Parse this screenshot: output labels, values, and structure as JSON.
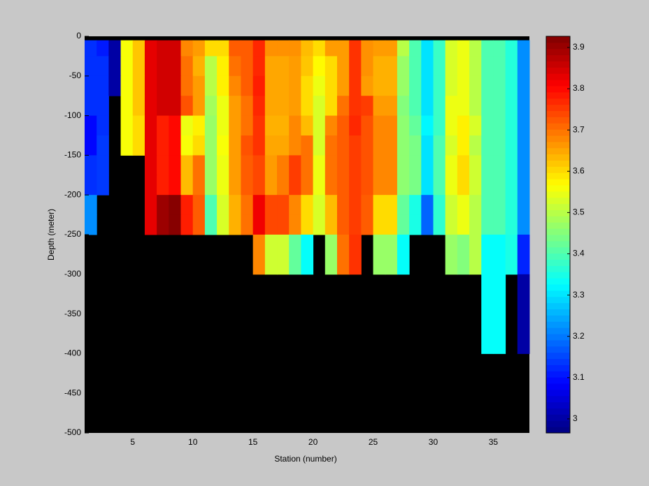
{
  "chart_data": {
    "type": "heatmap",
    "xlabel": "Station (number)",
    "ylabel": "Depth (meter)",
    "colormap": "jet",
    "background": "#000000",
    "x": [
      1,
      2,
      3,
      4,
      5,
      6,
      7,
      8,
      9,
      10,
      11,
      12,
      13,
      14,
      15,
      16,
      17,
      18,
      19,
      20,
      21,
      22,
      23,
      24,
      25,
      26,
      27,
      28,
      29,
      30,
      31,
      32,
      33,
      34,
      35,
      36,
      37,
      38
    ],
    "y": [
      -5,
      -25,
      -50,
      -75,
      -100,
      -125,
      -150,
      -175,
      -200,
      -225,
      -250,
      -300,
      -400
    ],
    "z": [
      [
        3.13,
        3.11,
        3.0,
        3.56,
        3.62,
        3.83,
        3.85,
        3.85,
        3.68,
        3.66,
        3.6,
        3.6,
        3.72,
        3.72,
        3.77,
        3.67,
        3.67,
        3.67,
        3.63,
        3.6,
        3.66,
        3.66,
        3.76,
        3.67,
        3.66,
        3.66,
        3.5,
        3.4,
        3.3,
        3.38,
        3.53,
        3.55,
        3.5,
        3.4,
        3.4,
        3.36,
        3.22
      ],
      [
        3.13,
        3.13,
        3.0,
        3.56,
        3.62,
        3.83,
        3.85,
        3.85,
        3.7,
        3.64,
        3.5,
        3.58,
        3.7,
        3.72,
        3.77,
        3.65,
        3.65,
        3.66,
        3.62,
        3.57,
        3.6,
        3.66,
        3.76,
        3.67,
        3.64,
        3.64,
        3.47,
        3.4,
        3.3,
        3.38,
        3.53,
        3.55,
        3.5,
        3.4,
        3.4,
        3.36,
        3.22
      ],
      [
        3.13,
        3.13,
        3.0,
        3.56,
        3.62,
        3.83,
        3.85,
        3.85,
        3.7,
        3.66,
        3.5,
        3.58,
        3.68,
        3.72,
        3.78,
        3.65,
        3.65,
        3.66,
        3.6,
        3.55,
        3.6,
        3.66,
        3.76,
        3.66,
        3.64,
        3.64,
        3.47,
        3.4,
        3.3,
        3.38,
        3.53,
        3.55,
        3.5,
        3.4,
        3.4,
        3.36,
        3.22
      ],
      [
        3.13,
        3.13,
        null,
        3.56,
        3.62,
        3.83,
        3.85,
        3.85,
        3.73,
        3.66,
        3.48,
        3.55,
        3.66,
        3.7,
        3.77,
        3.65,
        3.65,
        3.66,
        3.6,
        3.53,
        3.6,
        3.7,
        3.76,
        3.75,
        3.66,
        3.66,
        3.45,
        3.4,
        3.3,
        3.38,
        3.55,
        3.55,
        3.5,
        3.4,
        3.4,
        3.36,
        3.22
      ],
      [
        3.09,
        3.13,
        null,
        3.56,
        3.6,
        3.83,
        3.78,
        3.8,
        3.55,
        3.58,
        3.47,
        3.55,
        3.66,
        3.7,
        3.76,
        3.64,
        3.64,
        3.68,
        3.63,
        3.53,
        3.68,
        3.72,
        3.77,
        3.73,
        3.68,
        3.68,
        3.46,
        3.42,
        3.32,
        3.38,
        3.55,
        3.58,
        3.53,
        3.4,
        3.4,
        3.36,
        3.22
      ],
      [
        3.09,
        3.14,
        null,
        3.56,
        3.6,
        3.83,
        3.78,
        3.8,
        3.56,
        3.6,
        3.47,
        3.56,
        3.66,
        3.73,
        3.76,
        3.65,
        3.65,
        3.68,
        3.7,
        3.53,
        3.7,
        3.72,
        3.75,
        3.73,
        3.68,
        3.68,
        3.46,
        3.44,
        3.3,
        3.4,
        3.53,
        3.58,
        3.5,
        3.4,
        3.4,
        3.36,
        3.22
      ],
      [
        3.13,
        3.14,
        null,
        null,
        null,
        3.83,
        3.78,
        3.8,
        3.63,
        3.7,
        3.47,
        3.55,
        3.66,
        3.72,
        3.74,
        3.66,
        3.69,
        3.75,
        3.7,
        3.55,
        3.7,
        3.72,
        3.75,
        3.73,
        3.68,
        3.68,
        3.46,
        3.44,
        3.3,
        3.4,
        3.55,
        3.6,
        3.52,
        3.4,
        3.4,
        3.36,
        3.22
      ],
      [
        3.13,
        3.14,
        null,
        null,
        null,
        3.83,
        3.78,
        3.8,
        3.63,
        3.7,
        3.47,
        3.55,
        3.66,
        3.72,
        3.74,
        3.66,
        3.69,
        3.75,
        3.7,
        3.55,
        3.7,
        3.72,
        3.75,
        3.73,
        3.68,
        3.68,
        3.46,
        3.44,
        3.3,
        3.4,
        3.55,
        3.6,
        3.52,
        3.4,
        3.4,
        3.36,
        3.22
      ],
      [
        3.22,
        null,
        null,
        null,
        null,
        3.83,
        3.9,
        3.92,
        3.78,
        3.72,
        3.4,
        3.53,
        3.64,
        3.7,
        3.82,
        3.74,
        3.74,
        3.68,
        3.6,
        3.53,
        3.63,
        3.72,
        3.75,
        3.72,
        3.6,
        3.6,
        3.42,
        3.35,
        3.18,
        3.37,
        3.52,
        3.55,
        3.5,
        3.4,
        3.4,
        3.36,
        3.22
      ],
      [
        3.22,
        null,
        null,
        null,
        null,
        3.83,
        3.9,
        3.92,
        3.78,
        3.72,
        3.4,
        3.53,
        3.64,
        3.7,
        3.82,
        3.74,
        3.74,
        3.68,
        3.6,
        3.53,
        3.63,
        3.72,
        3.75,
        3.72,
        3.6,
        3.6,
        3.42,
        3.35,
        3.18,
        3.37,
        3.52,
        3.55,
        3.5,
        3.4,
        3.4,
        3.36,
        3.22
      ],
      [
        null,
        null,
        null,
        null,
        null,
        null,
        null,
        null,
        null,
        null,
        null,
        null,
        null,
        null,
        3.68,
        3.52,
        3.52,
        3.42,
        3.33,
        null,
        3.47,
        3.7,
        3.76,
        null,
        3.47,
        3.47,
        3.33,
        null,
        null,
        null,
        3.47,
        3.45,
        3.5,
        3.33,
        3.33,
        3.35,
        3.12
      ],
      [
        null,
        null,
        null,
        null,
        null,
        null,
        null,
        null,
        null,
        null,
        null,
        null,
        null,
        null,
        null,
        null,
        null,
        null,
        null,
        null,
        null,
        null,
        null,
        null,
        null,
        null,
        null,
        null,
        null,
        null,
        null,
        null,
        null,
        3.33,
        3.33,
        null,
        3.0
      ]
    ],
    "xlim": [
      1,
      38
    ],
    "ylim": [
      -500,
      0
    ],
    "xticks": [
      5,
      10,
      15,
      20,
      25,
      30,
      35
    ],
    "yticks": [
      -500,
      -450,
      -400,
      -350,
      -300,
      -250,
      -200,
      -150,
      -100,
      -50,
      0
    ],
    "clim": [
      2.966,
      3.927
    ],
    "cticks": [
      3,
      3.1,
      3.2,
      3.3,
      3.4,
      3.5,
      3.6,
      3.7,
      3.8,
      3.9
    ]
  }
}
